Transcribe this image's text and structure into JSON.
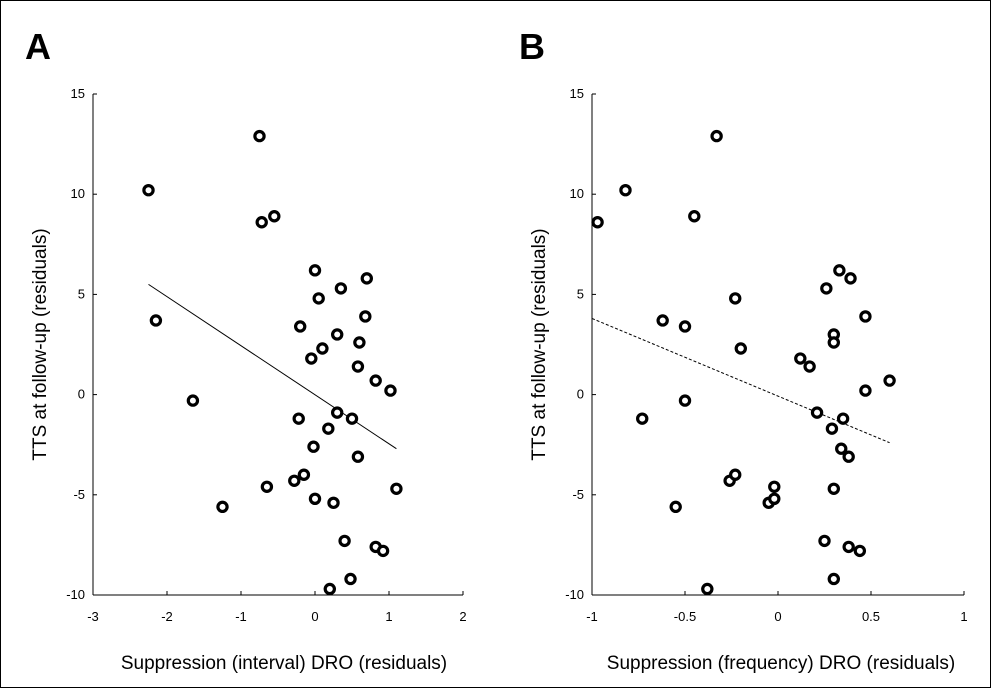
{
  "chart_data": [
    {
      "type": "scatter",
      "panel_letter": "A",
      "xlabel": "Suppression (interval) DRO (residuals)",
      "ylabel": "TTS at follow-up (residuals)",
      "xlim": [
        -3,
        2
      ],
      "ylim": [
        -10,
        15
      ],
      "xticks": [
        "-3",
        "-2",
        "-1",
        "0",
        "1",
        "2"
      ],
      "yticks": [
        "-10",
        "-5",
        "0",
        "5",
        "10",
        "15"
      ],
      "grid": false,
      "fit_line": {
        "style": "solid",
        "x": [
          -2.25,
          1.1
        ],
        "y": [
          5.5,
          -2.7
        ]
      },
      "points": [
        [
          -2.25,
          10.2
        ],
        [
          -2.15,
          3.7
        ],
        [
          -1.65,
          -0.3
        ],
        [
          -1.25,
          -5.6
        ],
        [
          -0.75,
          12.9
        ],
        [
          -0.72,
          8.6
        ],
        [
          -0.55,
          8.9
        ],
        [
          -0.65,
          -4.6
        ],
        [
          0.0,
          6.2
        ],
        [
          0.05,
          4.8
        ],
        [
          0.35,
          5.3
        ],
        [
          0.7,
          5.8
        ],
        [
          -0.2,
          3.4
        ],
        [
          0.3,
          3.0
        ],
        [
          0.68,
          3.9
        ],
        [
          -0.05,
          1.8
        ],
        [
          0.1,
          2.3
        ],
        [
          0.6,
          2.6
        ],
        [
          0.58,
          1.4
        ],
        [
          0.82,
          0.7
        ],
        [
          1.02,
          0.2
        ],
        [
          -0.22,
          -1.2
        ],
        [
          0.3,
          -0.9
        ],
        [
          0.5,
          -1.2
        ],
        [
          0.18,
          -1.7
        ],
        [
          -0.02,
          -2.6
        ],
        [
          0.58,
          -3.1
        ],
        [
          -0.15,
          -4.0
        ],
        [
          -0.28,
          -4.3
        ],
        [
          0.0,
          -5.2
        ],
        [
          0.25,
          -5.4
        ],
        [
          1.1,
          -4.7
        ],
        [
          0.4,
          -7.3
        ],
        [
          0.82,
          -7.6
        ],
        [
          0.92,
          -7.8
        ],
        [
          0.48,
          -9.2
        ],
        [
          0.2,
          -9.7
        ]
      ]
    },
    {
      "type": "scatter",
      "panel_letter": "B",
      "xlabel": "Suppression (frequency) DRO (residuals)",
      "ylabel": "TTS at follow-up (residuals)",
      "xlim": [
        -1,
        1
      ],
      "ylim": [
        -10,
        15
      ],
      "xticks": [
        "-1",
        "-0.5",
        "0",
        "0.5",
        "1"
      ],
      "yticks": [
        "-10",
        "-5",
        "0",
        "5",
        "10",
        "15"
      ],
      "grid": false,
      "fit_line": {
        "style": "dashed",
        "x": [
          -1.0,
          0.6
        ],
        "y": [
          3.8,
          -2.4
        ]
      },
      "points": [
        [
          -0.97,
          8.6
        ],
        [
          -0.82,
          10.2
        ],
        [
          -0.33,
          12.9
        ],
        [
          -0.45,
          8.9
        ],
        [
          -0.62,
          3.7
        ],
        [
          -0.5,
          3.4
        ],
        [
          -0.23,
          4.8
        ],
        [
          -0.2,
          2.3
        ],
        [
          -0.73,
          -1.2
        ],
        [
          -0.5,
          -0.3
        ],
        [
          -0.55,
          -5.6
        ],
        [
          -0.26,
          -4.3
        ],
        [
          -0.23,
          -4.0
        ],
        [
          -0.02,
          -4.6
        ],
        [
          -0.05,
          -5.4
        ],
        [
          -0.02,
          -5.2
        ],
        [
          -0.38,
          -9.7
        ],
        [
          0.12,
          1.8
        ],
        [
          0.17,
          1.4
        ],
        [
          0.26,
          5.3
        ],
        [
          0.33,
          6.2
        ],
        [
          0.39,
          5.8
        ],
        [
          0.3,
          3.0
        ],
        [
          0.3,
          2.6
        ],
        [
          0.47,
          3.9
        ],
        [
          0.47,
          0.2
        ],
        [
          0.6,
          0.7
        ],
        [
          0.21,
          -0.9
        ],
        [
          0.35,
          -1.2
        ],
        [
          0.29,
          -1.7
        ],
        [
          0.34,
          -2.7
        ],
        [
          0.38,
          -3.1
        ],
        [
          0.3,
          -4.7
        ],
        [
          0.25,
          -7.3
        ],
        [
          0.38,
          -7.6
        ],
        [
          0.44,
          -7.8
        ],
        [
          0.3,
          -9.2
        ]
      ]
    }
  ]
}
